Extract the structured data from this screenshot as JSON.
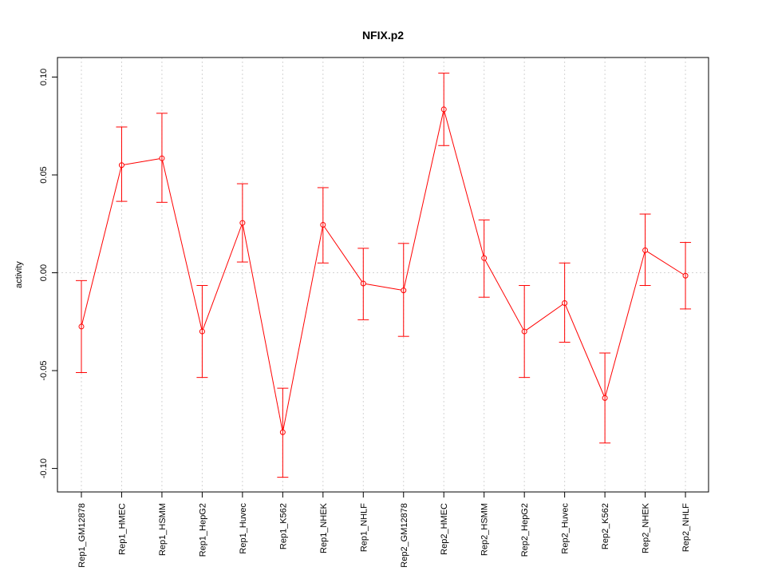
{
  "chart_data": {
    "type": "line",
    "title": "NFIX.p2",
    "xlabel": "",
    "ylabel": "activity",
    "ylim": [
      -0.112,
      0.11
    ],
    "yticks": [
      -0.1,
      -0.05,
      0.0,
      0.05,
      0.1
    ],
    "ytick_labels": [
      "-0.10",
      "-0.05",
      "0.00",
      "0.05",
      "0.10"
    ],
    "grid": true,
    "color": "#ff0000",
    "categories": [
      "Rep1_GM12878",
      "Rep1_HMEC",
      "Rep1_HSMM",
      "Rep1_HepG2",
      "Rep1_Huvec",
      "Rep1_K562",
      "Rep1_NHEK",
      "Rep1_NHLF",
      "Rep2_GM12878",
      "Rep2_HMEC",
      "Rep2_HSMM",
      "Rep2_HepG2",
      "Rep2_Huvec",
      "Rep2_K562",
      "Rep2_NHEK",
      "Rep2_NHLF"
    ],
    "values": [
      -0.0275,
      0.055,
      0.0585,
      -0.03,
      0.0255,
      -0.0815,
      0.0245,
      -0.0055,
      -0.009,
      0.0835,
      0.0075,
      -0.03,
      -0.0155,
      -0.064,
      0.0115,
      -0.0015
    ],
    "error_upper": [
      -0.004,
      0.0745,
      0.0815,
      -0.0065,
      0.0455,
      -0.059,
      0.0435,
      0.0125,
      0.015,
      0.102,
      0.027,
      -0.0065,
      0.005,
      -0.041,
      0.03,
      0.0155
    ],
    "error_lower": [
      -0.051,
      0.0365,
      0.036,
      -0.0535,
      0.0055,
      -0.1045,
      0.005,
      -0.024,
      -0.0325,
      0.065,
      -0.0125,
      -0.0535,
      -0.0355,
      -0.087,
      -0.0065,
      -0.0185
    ]
  }
}
